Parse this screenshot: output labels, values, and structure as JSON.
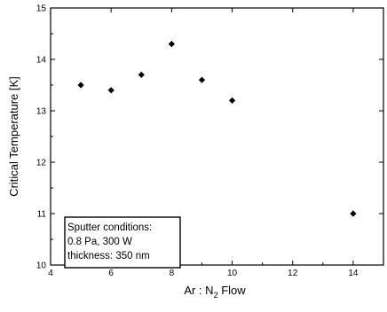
{
  "chart_data": {
    "type": "scatter",
    "title": "",
    "xlabel_main": "Ar : N",
    "xlabel_sub": "2",
    "xlabel_tail": " Flow",
    "ylabel": "Critical Temperature [K]",
    "xlim": [
      4,
      15
    ],
    "ylim": [
      10,
      15
    ],
    "x_ticks": [
      4,
      6,
      8,
      10,
      12,
      14
    ],
    "y_ticks": [
      10,
      11,
      12,
      13,
      14,
      15
    ],
    "grid": false,
    "marker": "diamond",
    "color": "#000000",
    "points": [
      {
        "x": 5,
        "y": 13.5
      },
      {
        "x": 6,
        "y": 13.4
      },
      {
        "x": 7,
        "y": 13.7
      },
      {
        "x": 8,
        "y": 14.3
      },
      {
        "x": 9,
        "y": 13.6
      },
      {
        "x": 10,
        "y": 13.2
      },
      {
        "x": 14,
        "y": 11.0
      }
    ],
    "annotation": {
      "lines": [
        "Sputter conditions:",
        "0.8 Pa, 300 W",
        "thickness: 350 nm"
      ]
    }
  }
}
